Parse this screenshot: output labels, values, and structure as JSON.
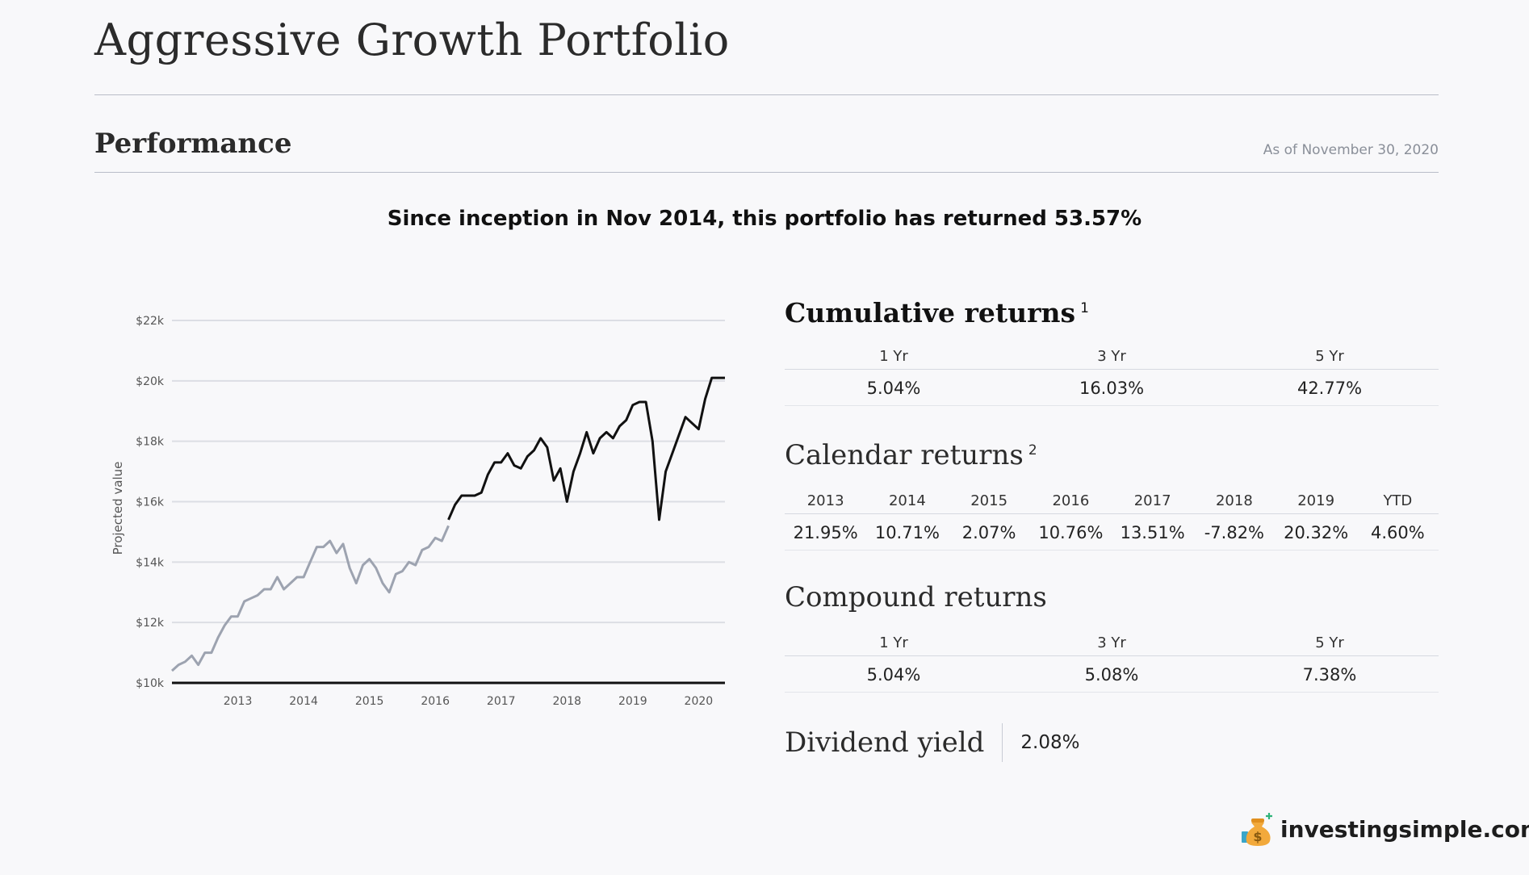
{
  "page": {
    "title": "Aggressive Growth Portfolio",
    "section_title": "Performance",
    "as_of": "As of November 30, 2020",
    "headline": "Since inception in Nov 2014, this portfolio has returned 53.57%"
  },
  "chart_data": {
    "type": "line",
    "ylabel": "Projected value",
    "xlabel": "",
    "title": "",
    "y_ticks": [
      "$10k",
      "$12k",
      "$14k",
      "$16k",
      "$18k",
      "$20k",
      "$22k"
    ],
    "x_ticks": [
      "2013",
      "2014",
      "2015",
      "2016",
      "2017",
      "2018",
      "2019",
      "2020"
    ],
    "ylim": [
      10000,
      22000
    ],
    "xlim": [
      2012.5,
      2020.9
    ],
    "grid": true,
    "colors": {
      "projected": "#9da3b0",
      "actual": "#111111"
    },
    "series": [
      {
        "role": "projected",
        "x": [
          2012.5,
          2012.6,
          2012.7,
          2012.8,
          2012.9,
          2013.0,
          2013.1,
          2013.2,
          2013.3,
          2013.4,
          2013.5,
          2013.6,
          2013.7,
          2013.8,
          2013.9,
          2014.0,
          2014.1,
          2014.2,
          2014.3,
          2014.4,
          2014.5,
          2014.6,
          2014.7,
          2014.8,
          2014.9,
          2015.0,
          2015.1,
          2015.2,
          2015.3,
          2015.4,
          2015.5,
          2015.6,
          2015.7,
          2015.8,
          2015.9,
          2016.0,
          2016.1,
          2016.2,
          2016.3,
          2016.4,
          2016.5,
          2016.6,
          2016.7
        ],
        "values": [
          10400,
          10600,
          10700,
          10900,
          10600,
          11000,
          11000,
          11500,
          11900,
          12200,
          12200,
          12700,
          12800,
          12900,
          13100,
          13100,
          13500,
          13100,
          13300,
          13500,
          13500,
          14000,
          14500,
          14500,
          14700,
          14300,
          14600,
          13800,
          13300,
          13900,
          14100,
          13800,
          13300,
          13000,
          13600,
          13700,
          14000,
          13900,
          14400,
          14500,
          14800,
          14700,
          15200
        ]
      },
      {
        "role": "actual",
        "x": [
          2016.7,
          2016.8,
          2016.9,
          2017.0,
          2017.1,
          2017.2,
          2017.3,
          2017.4,
          2017.5,
          2017.6,
          2017.7,
          2017.8,
          2017.9,
          2018.0,
          2018.1,
          2018.2,
          2018.3,
          2018.4,
          2018.5,
          2018.6,
          2018.7,
          2018.8,
          2018.9,
          2019.0,
          2019.1,
          2019.2,
          2019.3,
          2019.4,
          2019.5,
          2019.6,
          2019.7,
          2019.8,
          2019.9,
          2020.0,
          2020.1,
          2020.2,
          2020.3,
          2020.4,
          2020.5,
          2020.6,
          2020.7,
          2020.8,
          2020.9
        ],
        "values": [
          15400,
          15900,
          16200,
          16200,
          16200,
          16300,
          16900,
          17300,
          17300,
          17600,
          17200,
          17100,
          17500,
          17700,
          18100,
          17800,
          16700,
          17100,
          16000,
          17000,
          17600,
          18300,
          17600,
          18100,
          18300,
          18100,
          18500,
          18700,
          19200,
          19300,
          19300,
          18000,
          15400,
          17000,
          17600,
          18200,
          18800,
          18600,
          18400,
          19400,
          20100,
          20100,
          20100
        ]
      }
    ]
  },
  "cumulative": {
    "title": "Cumulative returns",
    "footnote": "1",
    "headers": [
      "1 Yr",
      "3 Yr",
      "5 Yr"
    ],
    "values": [
      "5.04%",
      "16.03%",
      "42.77%"
    ]
  },
  "calendar": {
    "title": "Calendar returns",
    "footnote": "2",
    "headers": [
      "2013",
      "2014",
      "2015",
      "2016",
      "2017",
      "2018",
      "2019",
      "YTD"
    ],
    "values": [
      "21.95%",
      "10.71%",
      "2.07%",
      "10.76%",
      "13.51%",
      "-7.82%",
      "20.32%",
      "4.60%"
    ]
  },
  "compound": {
    "title": "Compound returns",
    "headers": [
      "1 Yr",
      "3 Yr",
      "5 Yr"
    ],
    "values": [
      "5.04%",
      "5.08%",
      "7.38%"
    ]
  },
  "dividend": {
    "label": "Dividend yield",
    "value": "2.08%"
  },
  "logo": {
    "text": "investingsimple.com",
    "icon": "money-bag-icon"
  }
}
